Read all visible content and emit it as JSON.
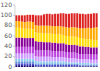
{
  "chart_data": {
    "type": "bar",
    "stacked": true,
    "tick_labels": "y",
    "categories": [
      null,
      null,
      null,
      null,
      null,
      null,
      null,
      null,
      null,
      null,
      null,
      null,
      null,
      null,
      null,
      null,
      null,
      null,
      null,
      null,
      null,
      null,
      null,
      null,
      null,
      null,
      null,
      null,
      null,
      null
    ],
    "series": [
      {
        "color": "#1a0a6b",
        "values": [
          2,
          2,
          2,
          2,
          2,
          2,
          2,
          1,
          1,
          1,
          1,
          1,
          1,
          1,
          1,
          1,
          1,
          1,
          1,
          1,
          1,
          1,
          1,
          1,
          1,
          1,
          1,
          1,
          1,
          1
        ]
      },
      {
        "color": "#2e2e9e",
        "values": [
          2,
          2,
          2,
          2,
          2,
          2,
          2,
          1,
          1,
          1,
          1,
          1,
          1,
          1,
          1,
          1,
          1,
          1,
          1,
          1,
          1,
          1,
          1,
          1,
          1,
          1,
          1,
          1,
          1,
          1
        ]
      },
      {
        "color": "#4040cc",
        "values": [
          3,
          3,
          3,
          3,
          3,
          3,
          3,
          2,
          2,
          2,
          2,
          2,
          2,
          2,
          2,
          2,
          2,
          2,
          2,
          2,
          2,
          2,
          2,
          1,
          1,
          1,
          1,
          1,
          1,
          1
        ]
      },
      {
        "color": "#5b8dd9",
        "values": [
          4,
          4,
          4,
          4,
          4,
          4,
          4,
          3,
          3,
          3,
          3,
          3,
          3,
          3,
          3,
          3,
          3,
          3,
          3,
          2,
          2,
          2,
          2,
          2,
          2,
          2,
          2,
          2,
          2,
          2
        ]
      },
      {
        "color": "#87ceeb",
        "values": [
          5,
          5,
          5,
          5,
          5,
          5,
          5,
          5,
          4,
          4,
          4,
          4,
          4,
          4,
          4,
          4,
          4,
          4,
          3,
          3,
          3,
          3,
          3,
          3,
          3,
          3,
          3,
          2,
          2,
          2
        ]
      },
      {
        "color": "#cc99ff",
        "values": [
          10,
          10,
          10,
          10,
          10,
          10,
          10,
          9,
          9,
          9,
          9,
          9,
          9,
          8,
          8,
          8,
          8,
          8,
          8,
          8,
          8,
          8,
          7,
          7,
          7,
          7,
          7,
          7,
          7,
          7
        ]
      },
      {
        "color": "#bb44dd",
        "values": [
          13,
          13,
          13,
          13,
          13,
          13,
          13,
          12,
          12,
          12,
          12,
          12,
          12,
          12,
          12,
          11,
          11,
          11,
          11,
          11,
          11,
          11,
          11,
          10,
          10,
          10,
          10,
          10,
          10,
          10
        ]
      },
      {
        "color": "#880099",
        "values": [
          18,
          18,
          18,
          17,
          17,
          17,
          17,
          17,
          17,
          17,
          16,
          16,
          16,
          16,
          16,
          16,
          16,
          16,
          15,
          15,
          15,
          15,
          15,
          15,
          15,
          14,
          14,
          14,
          14,
          14
        ]
      },
      {
        "color": "#ffdd00",
        "values": [
          19,
          19,
          18,
          18,
          18,
          18,
          17,
          17,
          17,
          17,
          17,
          17,
          17,
          17,
          17,
          17,
          17,
          16,
          16,
          16,
          16,
          16,
          16,
          16,
          15,
          15,
          15,
          15,
          14,
          14
        ]
      },
      {
        "color": "#ffaa00",
        "values": [
          13,
          13,
          13,
          13,
          14,
          14,
          14,
          14,
          14,
          14,
          15,
          15,
          15,
          15,
          15,
          16,
          16,
          16,
          17,
          17,
          18,
          18,
          18,
          19,
          20,
          21,
          22,
          22,
          24,
          25
        ]
      },
      {
        "color": "#dd2222",
        "values": [
          11,
          11,
          12,
          13,
          13,
          13,
          14,
          19,
          20,
          20,
          22,
          23,
          23,
          23,
          24,
          24,
          25,
          26,
          26,
          27,
          27,
          27,
          28,
          28,
          28,
          27,
          27,
          28,
          28,
          27
        ]
      }
    ],
    "ylim": [
      0,
      120
    ],
    "yticks": [
      0,
      20,
      40,
      60,
      80,
      100,
      120
    ]
  }
}
